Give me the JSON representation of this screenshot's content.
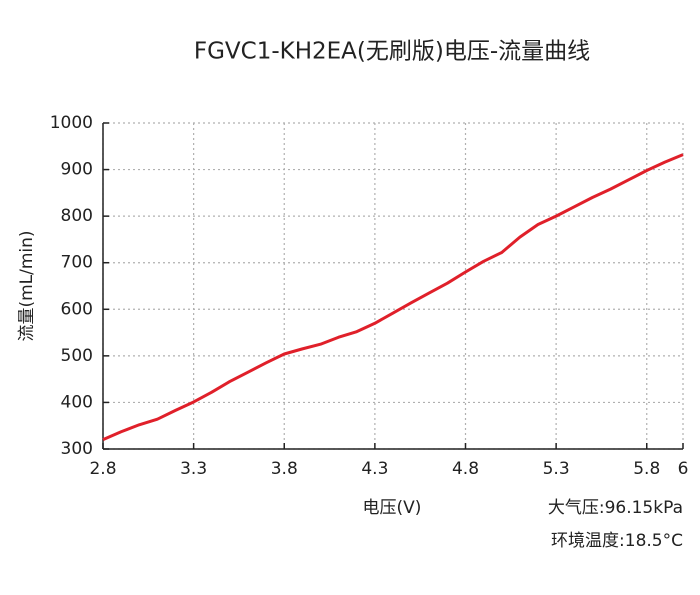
{
  "chart_data": {
    "type": "line",
    "title": "FGVC1-KH2EA(无刷版)电压-流量曲线",
    "x_label": "电压(V)",
    "y_label": "流量(mL/min)",
    "annotations": [
      "大气压:96.15kPa",
      "环境温度:18.5°C"
    ],
    "x": [
      2.8,
      2.9,
      3.0,
      3.1,
      3.2,
      3.3,
      3.4,
      3.5,
      3.6,
      3.7,
      3.8,
      3.9,
      4.0,
      4.1,
      4.2,
      4.3,
      4.4,
      4.5,
      4.6,
      4.7,
      4.8,
      4.9,
      5.0,
      5.1,
      5.2,
      5.3,
      5.4,
      5.5,
      5.6,
      5.7,
      5.8,
      5.9,
      6.0
    ],
    "series": [
      {
        "name": "流量",
        "color": "#e0202a",
        "values": [
          320,
          337,
          352,
          364,
          383,
          401,
          422,
          445,
          465,
          485,
          504,
          515,
          525,
          540,
          552,
          570,
          592,
          614,
          635,
          656,
          680,
          703,
          722,
          755,
          782,
          800,
          820,
          840,
          858,
          878,
          898,
          916,
          932
        ]
      }
    ],
    "xlim": [
      2.8,
      6
    ],
    "xticks": [
      2.8,
      3.3,
      3.8,
      4.3,
      4.8,
      5.3,
      5.8,
      6
    ],
    "ylim": [
      300,
      1000
    ],
    "yticks": [
      300,
      400,
      500,
      600,
      700,
      800,
      900,
      1000
    ],
    "grid": true
  }
}
